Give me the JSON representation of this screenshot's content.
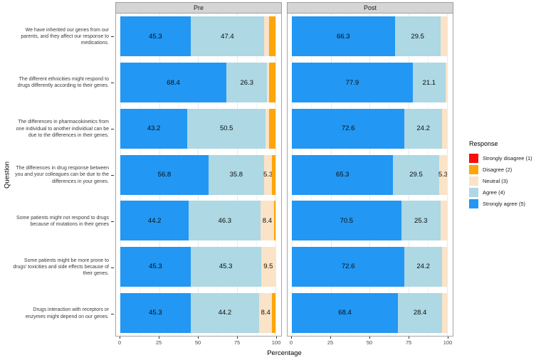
{
  "chart_data": {
    "type": "bar",
    "subtype": "horizontal_stacked_percent",
    "xlabel": "Percentage",
    "ylabel": "Question",
    "xlim": [
      0,
      100
    ],
    "x_ticks": [
      0,
      25,
      50,
      75,
      100
    ],
    "x_minor_gridlines": [
      12.5,
      37.5,
      62.5,
      87.5
    ],
    "grid": true,
    "legend_position": "right",
    "label_min_value": 5,
    "categories": [
      "We have inherited our genes from our parents, and they affect our response to medications.",
      "The different ethnicities might respond to drugs differently according to their genes.",
      "The differences in pharmacokinetics from one individual to another individual can be due to the differences in their genes.",
      "The differences in drug response between you and your colleagues can be due to the differences in your genes.",
      "Some patients might not respond to drugs because of mutations in their genes",
      "Some patients might be more prone to drugs' toxicities and side effects because of their genes.",
      "Drugs interaction with receptors or enzymes might depend on our genes."
    ],
    "stack_order": [
      "Strongly agree (5)",
      "Agree (4)",
      "Neutral (3)",
      "Disagree (2)",
      "Strongly disagree (1)"
    ],
    "stack_keys": [
      "strongly-agree",
      "agree",
      "neutral",
      "disagree",
      "strongly-disagree"
    ],
    "stack_colors": [
      "#2297F3",
      "#ADD8E4",
      "#FAE3C6",
      "#FDA50D",
      "#FB0D0D"
    ],
    "facets": [
      {
        "name": "Pre",
        "rows": [
          [
            45.3,
            47.4,
            3.2,
            4.2,
            0
          ],
          [
            68.4,
            26.3,
            1.1,
            4.2,
            0
          ],
          [
            43.2,
            50.5,
            2.1,
            4.2,
            0
          ],
          [
            56.8,
            35.8,
            5.3,
            2.1,
            0
          ],
          [
            44.2,
            46.3,
            8.4,
            1.1,
            0
          ],
          [
            45.3,
            45.3,
            9.5,
            0,
            0
          ],
          [
            45.3,
            44.2,
            8.4,
            2.1,
            0
          ]
        ]
      },
      {
        "name": "Post",
        "rows": [
          [
            66.3,
            29.5,
            4.2,
            0,
            0
          ],
          [
            77.9,
            21.1,
            1.1,
            0,
            0
          ],
          [
            72.6,
            24.2,
            3.2,
            0,
            0
          ],
          [
            65.3,
            29.5,
            5.3,
            0,
            0
          ],
          [
            70.5,
            25.3,
            4.2,
            0,
            0
          ],
          [
            72.6,
            24.2,
            3.2,
            0,
            0
          ],
          [
            68.4,
            28.4,
            3.2,
            0,
            0
          ]
        ]
      }
    ],
    "legend": {
      "title": "Response",
      "items": [
        {
          "label": "Strongly disagree (1)",
          "color": "#FB0D0D"
        },
        {
          "label": "Disagree (2)",
          "color": "#FDA50D"
        },
        {
          "label": "Neutral (3)",
          "color": "#FAE3C6"
        },
        {
          "label": "Agree (4)",
          "color": "#ADD8E4"
        },
        {
          "label": "Strongly agree (5)",
          "color": "#2297F3"
        }
      ]
    }
  }
}
